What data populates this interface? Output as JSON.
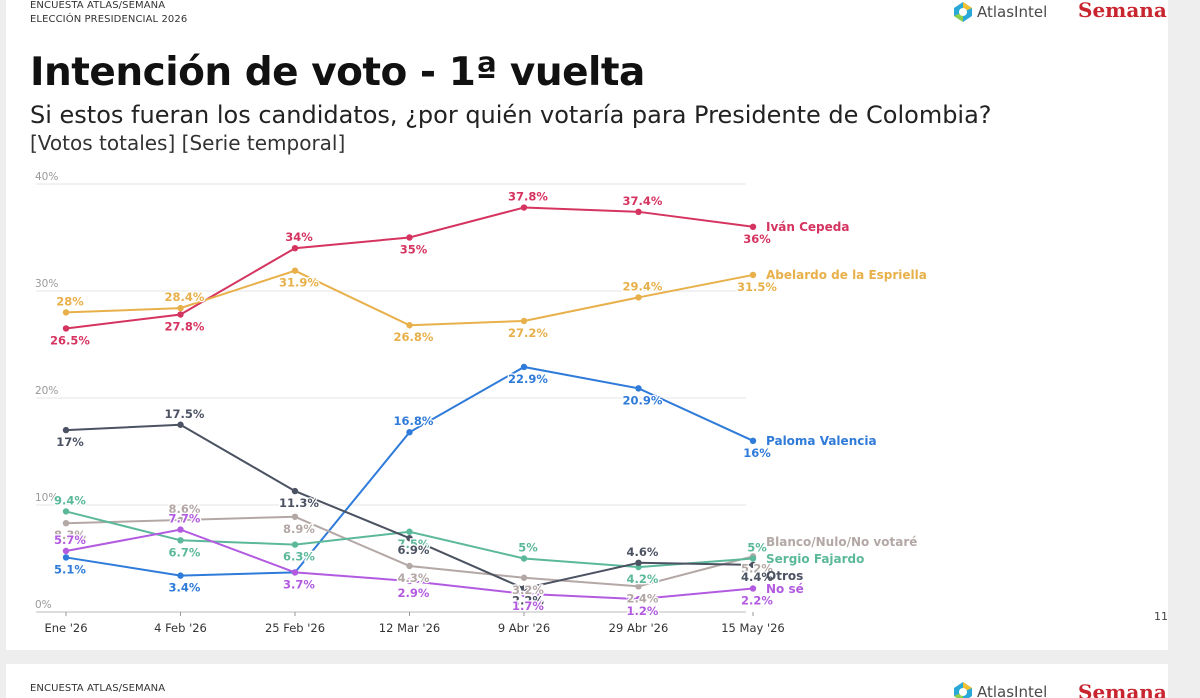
{
  "header": {
    "line1": "ENCUESTA ATLAS/SEMANA",
    "line2": "ELECCIÓN PRESIDENCIAL 2026",
    "logo_atlas": "AtlasIntel",
    "logo_semana": "Semana"
  },
  "title": "Intención de voto - 1ª vuelta",
  "subtitle": "Si estos fueran los candidatos, ¿por quién votaría para Presidente de Colombia?",
  "subtitle2": "[Votos totales] [Serie temporal]",
  "page_number": "11",
  "next_slide": {
    "line1": "ENCUESTA ATLAS/SEMANA",
    "logo_atlas": "AtlasIntel",
    "logo_semana": "Semana"
  },
  "chart_data": {
    "type": "line",
    "x": [
      "Ene '26",
      "4 Feb '26",
      "25 Feb '26",
      "12 Mar '26",
      "9 Abr '26",
      "29 Abr '26",
      "15 May '26"
    ],
    "ylim": [
      0,
      40
    ],
    "yticks": [
      "0%",
      "10%",
      "20%",
      "30%",
      "40%"
    ],
    "grid": true,
    "legend_placement": "right end labels",
    "series": [
      {
        "name": "Iván Cepeda",
        "color": "#d63460",
        "values": [
          26.5,
          27.8,
          34,
          35,
          37.8,
          37.4,
          36
        ],
        "labels": [
          "26.5%",
          "27.8%",
          "34%",
          "35%",
          "37.8%",
          "37.4%",
          "36%"
        ]
      },
      {
        "name": "Abelardo de la Espriella",
        "color": "#e8b04a",
        "values": [
          28,
          28.4,
          31.9,
          26.8,
          27.2,
          29.4,
          31.5
        ],
        "labels": [
          "28%",
          "28.4%",
          "31.9%",
          "26.8%",
          "27.2%",
          "29.4%",
          "31.5%"
        ]
      },
      {
        "name": "Paloma Valencia",
        "color": "#2f7bd9",
        "values": [
          5.1,
          3.4,
          3.7,
          16.8,
          22.9,
          20.9,
          16
        ],
        "labels": [
          "5.1%",
          "3.4%",
          "3.7%",
          "16.8%",
          "22.9%",
          "20.9%",
          "16%"
        ]
      },
      {
        "name": "Blanco/Nulo/No votaré",
        "color": "#b3a8a6",
        "values": [
          8.3,
          8.6,
          8.9,
          4.3,
          3.2,
          2.4,
          5.2
        ],
        "labels": [
          "8.3%",
          "8.6%",
          "8.9%",
          "4.3%",
          "3.2%",
          "2.4%",
          "5.2%"
        ]
      },
      {
        "name": "Sergio Fajardo",
        "color": "#5cb89b",
        "values": [
          9.4,
          6.7,
          6.3,
          7.5,
          5,
          4.2,
          5
        ],
        "labels": [
          "9.4%",
          "6.7%",
          "6.3%",
          "7.5%",
          "5%",
          "4.2%",
          "5%"
        ]
      },
      {
        "name": "Otros",
        "color": "#4b5261",
        "values": [
          17,
          17.5,
          11.3,
          6.9,
          2.2,
          4.6,
          4.4
        ],
        "labels": [
          "17%",
          "17.5%",
          "11.3%",
          "6.9%",
          "2.2%",
          "4.6%",
          "4.4%"
        ]
      },
      {
        "name": "No sé",
        "color": "#b25be0",
        "values": [
          5.7,
          7.7,
          3.7,
          2.9,
          1.7,
          1.2,
          2.2
        ],
        "labels": [
          "5.7%",
          "7.7%",
          "3.7%",
          "2.9%",
          "1.7%",
          "1.2%",
          "2.2%"
        ]
      }
    ]
  }
}
